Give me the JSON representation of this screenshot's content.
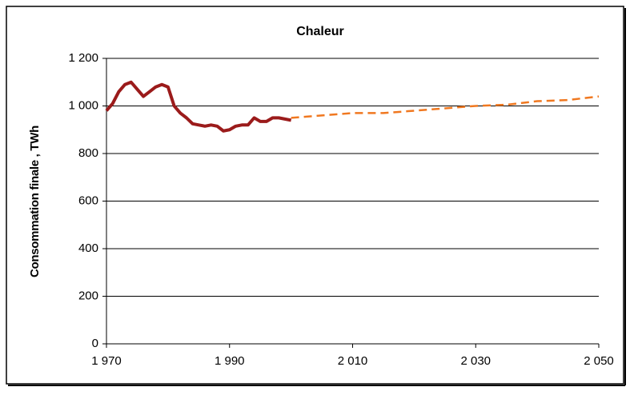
{
  "chart_data": {
    "type": "line",
    "title": "Chaleur",
    "ylabel": "Consommation finale , TWh",
    "xlim": [
      1970,
      2050
    ],
    "xticks": [
      {
        "value": 1970,
        "label": "1 970"
      },
      {
        "value": 1990,
        "label": "1 990"
      },
      {
        "value": 2010,
        "label": "2 010"
      },
      {
        "value": 2030,
        "label": "2 030"
      },
      {
        "value": 2050,
        "label": "2 050"
      }
    ],
    "ylim": [
      0,
      1200
    ],
    "yticks": [
      0,
      200,
      400,
      600,
      800,
      {
        "value": 1000,
        "label": "1 000"
      },
      {
        "value": 1200,
        "label": "1 200"
      }
    ],
    "grid": true,
    "series": [
      {
        "color": "#9b1b1b",
        "dashed": false,
        "x": [
          1970,
          1971,
          1972,
          1973,
          1974,
          1975,
          1976,
          1977,
          1978,
          1979,
          1980,
          1981,
          1982,
          1983,
          1984,
          1985,
          1986,
          1987,
          1988,
          1989,
          1990,
          1991,
          1992,
          1993,
          1994,
          1995,
          1996,
          1997,
          1998,
          1999,
          2000
        ],
        "values": [
          980,
          1010,
          1060,
          1090,
          1100,
          1070,
          1040,
          1060,
          1080,
          1090,
          1080,
          1000,
          970,
          950,
          925,
          920,
          915,
          920,
          915,
          895,
          900,
          915,
          920,
          920,
          950,
          935,
          935,
          950,
          950,
          945,
          940
        ]
      },
      {
        "color": "#f07820",
        "dashed": true,
        "x": [
          2000,
          2005,
          2010,
          2015,
          2020,
          2025,
          2030,
          2035,
          2040,
          2045,
          2050
        ],
        "values": [
          950,
          960,
          970,
          970,
          980,
          990,
          1000,
          1005,
          1020,
          1025,
          1040
        ]
      }
    ]
  }
}
